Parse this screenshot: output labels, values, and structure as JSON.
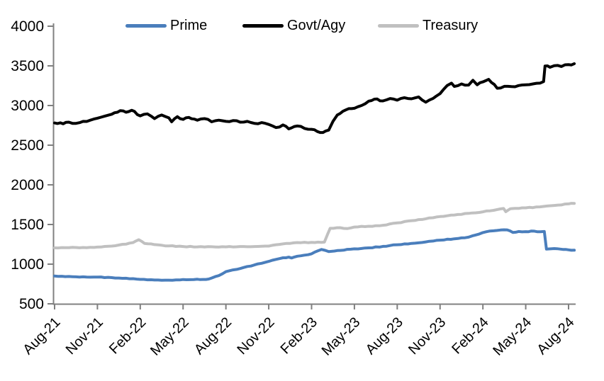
{
  "chart_data": {
    "type": "line",
    "title": "",
    "xlabel": "",
    "ylabel": "",
    "x_unit": "months since Aug-2021",
    "x_range": [
      0,
      36.4
    ],
    "ylim": [
      500,
      4000
    ],
    "y_ticks": [
      500,
      1000,
      1500,
      2000,
      2500,
      3000,
      3500,
      4000
    ],
    "x_tick_labels": [
      "Aug-21",
      "Nov-21",
      "Feb-22",
      "May-22",
      "Aug-22",
      "Nov-22",
      "Feb-23",
      "May-23",
      "Aug-23",
      "Nov-23",
      "Feb-24",
      "May-24",
      "Aug-24"
    ],
    "x_tick_positions": [
      0,
      3,
      6,
      9,
      12,
      15,
      18,
      21,
      24,
      27,
      30,
      33,
      36
    ],
    "legend_position": "top",
    "grid": false,
    "axis_color": "#808080",
    "text_color": "#000000",
    "series": [
      {
        "name": "Prime",
        "color": "#4a7ebc",
        "points": [
          [
            0,
            850
          ],
          [
            0.5,
            847
          ],
          [
            1,
            845
          ],
          [
            2,
            840
          ],
          [
            3,
            837
          ],
          [
            4,
            830
          ],
          [
            5,
            822
          ],
          [
            6,
            808
          ],
          [
            7,
            800
          ],
          [
            8,
            798
          ],
          [
            9,
            806
          ],
          [
            10,
            810
          ],
          [
            10.6,
            807
          ],
          [
            11,
            825
          ],
          [
            11.5,
            855
          ],
          [
            12,
            905
          ],
          [
            12.5,
            928
          ],
          [
            13,
            945
          ],
          [
            14,
            990
          ],
          [
            15,
            1035
          ],
          [
            16,
            1080
          ],
          [
            16.4,
            1088
          ],
          [
            16.6,
            1078
          ],
          [
            17,
            1100
          ],
          [
            17.5,
            1113
          ],
          [
            18,
            1130
          ],
          [
            18.4,
            1165
          ],
          [
            18.7,
            1185
          ],
          [
            19.2,
            1158
          ],
          [
            19.6,
            1165
          ],
          [
            20,
            1173
          ],
          [
            21,
            1193
          ],
          [
            22,
            1205
          ],
          [
            23,
            1224
          ],
          [
            24,
            1245
          ],
          [
            25,
            1262
          ],
          [
            26,
            1280
          ],
          [
            27,
            1303
          ],
          [
            28,
            1320
          ],
          [
            29,
            1340
          ],
          [
            29.5,
            1368
          ],
          [
            30,
            1398
          ],
          [
            30.5,
            1418
          ],
          [
            31,
            1425
          ],
          [
            31.7,
            1432
          ],
          [
            32.1,
            1400
          ],
          [
            32.5,
            1412
          ],
          [
            33,
            1410
          ],
          [
            33.6,
            1416
          ],
          [
            34,
            1408
          ],
          [
            34.3,
            1412
          ],
          [
            34.45,
            1190
          ],
          [
            35,
            1196
          ],
          [
            35.6,
            1186
          ],
          [
            36,
            1180
          ],
          [
            36.4,
            1176
          ]
        ]
      },
      {
        "name": "Govt/Agy",
        "color": "#000000",
        "points": [
          [
            0,
            2780
          ],
          [
            0.6,
            2770
          ],
          [
            1,
            2790
          ],
          [
            1.5,
            2775
          ],
          [
            2,
            2800
          ],
          [
            2.5,
            2815
          ],
          [
            3,
            2840
          ],
          [
            3.5,
            2865
          ],
          [
            4,
            2890
          ],
          [
            4.6,
            2935
          ],
          [
            5,
            2915
          ],
          [
            5.4,
            2940
          ],
          [
            6,
            2870
          ],
          [
            6.5,
            2895
          ],
          [
            7,
            2835
          ],
          [
            7.5,
            2880
          ],
          [
            8,
            2845
          ],
          [
            8.2,
            2795
          ],
          [
            8.6,
            2860
          ],
          [
            9,
            2825
          ],
          [
            9.4,
            2850
          ],
          [
            10,
            2815
          ],
          [
            10.5,
            2835
          ],
          [
            11,
            2795
          ],
          [
            11.5,
            2815
          ],
          [
            12,
            2800
          ],
          [
            12.5,
            2810
          ],
          [
            13,
            2790
          ],
          [
            13.5,
            2800
          ],
          [
            14,
            2775
          ],
          [
            14.5,
            2785
          ],
          [
            15,
            2762
          ],
          [
            15.5,
            2722
          ],
          [
            16,
            2755
          ],
          [
            16.4,
            2705
          ],
          [
            17,
            2742
          ],
          [
            17.5,
            2712
          ],
          [
            18,
            2700
          ],
          [
            18.4,
            2672
          ],
          [
            18.8,
            2660
          ],
          [
            19.2,
            2690
          ],
          [
            19.5,
            2800
          ],
          [
            19.8,
            2880
          ],
          [
            20,
            2900
          ],
          [
            20.4,
            2945
          ],
          [
            21,
            2965
          ],
          [
            21.5,
            3000
          ],
          [
            22,
            3055
          ],
          [
            22.4,
            3080
          ],
          [
            23,
            3058
          ],
          [
            23.5,
            3088
          ],
          [
            24,
            3068
          ],
          [
            24.5,
            3098
          ],
          [
            25,
            3085
          ],
          [
            25.5,
            3108
          ],
          [
            26,
            3042
          ],
          [
            26.5,
            3088
          ],
          [
            27,
            3150
          ],
          [
            27.5,
            3252
          ],
          [
            27.8,
            3282
          ],
          [
            28,
            3240
          ],
          [
            28.5,
            3272
          ],
          [
            29,
            3258
          ],
          [
            29.3,
            3318
          ],
          [
            29.6,
            3262
          ],
          [
            30,
            3298
          ],
          [
            30.4,
            3330
          ],
          [
            31,
            3218
          ],
          [
            31.5,
            3242
          ],
          [
            32,
            3238
          ],
          [
            32.5,
            3252
          ],
          [
            33,
            3262
          ],
          [
            33.5,
            3272
          ],
          [
            34,
            3282
          ],
          [
            34.25,
            3302
          ],
          [
            34.35,
            3498
          ],
          [
            34.7,
            3482
          ],
          [
            35,
            3502
          ],
          [
            35.5,
            3492
          ],
          [
            36,
            3515
          ],
          [
            36.4,
            3528
          ]
        ]
      },
      {
        "name": "Treasury",
        "color": "#c0c0c0",
        "points": [
          [
            0,
            1205
          ],
          [
            1,
            1208
          ],
          [
            2,
            1210
          ],
          [
            3,
            1215
          ],
          [
            4,
            1228
          ],
          [
            5,
            1252
          ],
          [
            5.5,
            1272
          ],
          [
            5.9,
            1308
          ],
          [
            6.3,
            1262
          ],
          [
            7,
            1246
          ],
          [
            8,
            1230
          ],
          [
            9,
            1222
          ],
          [
            10,
            1218
          ],
          [
            11,
            1220
          ],
          [
            12,
            1218
          ],
          [
            13,
            1222
          ],
          [
            14,
            1222
          ],
          [
            15,
            1228
          ],
          [
            16,
            1255
          ],
          [
            17,
            1272
          ],
          [
            18,
            1275
          ],
          [
            18.9,
            1278
          ],
          [
            19.3,
            1452
          ],
          [
            20,
            1460
          ],
          [
            20.5,
            1448
          ],
          [
            21,
            1468
          ],
          [
            22,
            1478
          ],
          [
            23,
            1490
          ],
          [
            24,
            1520
          ],
          [
            25,
            1548
          ],
          [
            26,
            1572
          ],
          [
            27,
            1600
          ],
          [
            28,
            1620
          ],
          [
            29,
            1640
          ],
          [
            30,
            1660
          ],
          [
            31,
            1688
          ],
          [
            31.45,
            1702
          ],
          [
            31.6,
            1662
          ],
          [
            31.9,
            1696
          ],
          [
            32,
            1700
          ],
          [
            33,
            1710
          ],
          [
            34,
            1722
          ],
          [
            35,
            1740
          ],
          [
            36,
            1760
          ],
          [
            36.4,
            1766
          ]
        ]
      }
    ],
    "style_hints": {
      "line_width": 4,
      "noise_amplitude": {
        "Prime": 4,
        "Govt/Agy": 10,
        "Treasury": 4
      }
    }
  }
}
